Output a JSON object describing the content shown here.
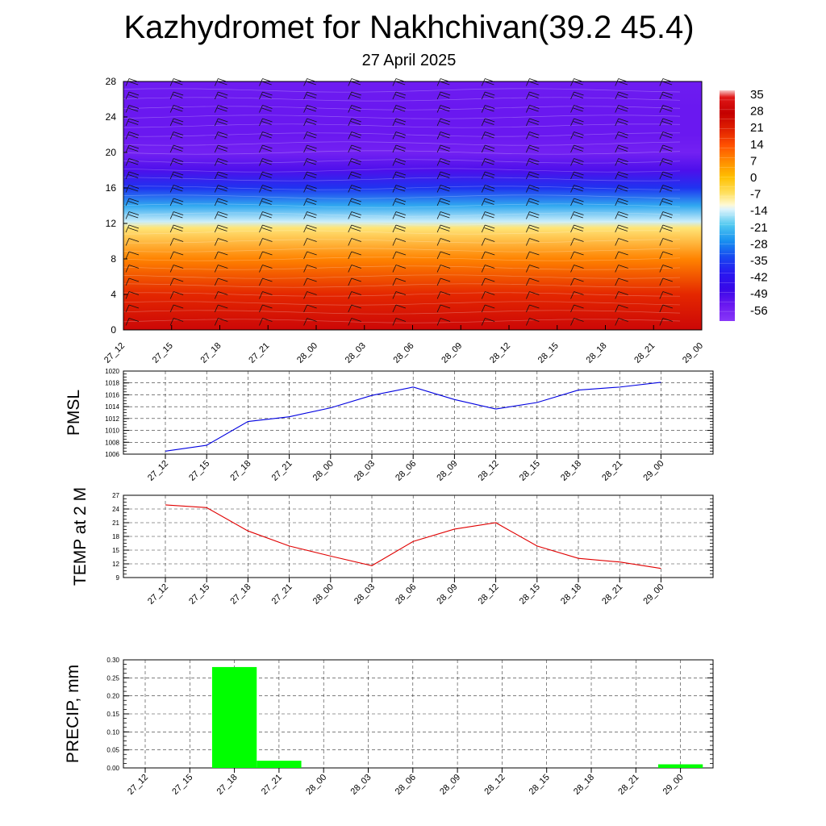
{
  "title": "Kazhydromet for Nakhchivan(39.2 45.4)",
  "subtitle": "27 April 2025",
  "chart_data": [
    {
      "type": "heatmap",
      "ylim": [
        0,
        28
      ],
      "yticks": [
        "0",
        "4",
        "8",
        "12",
        "16",
        "20",
        "24",
        "28"
      ],
      "xticks": [
        "27_12",
        "27_15",
        "27_18",
        "27_21",
        "28_00",
        "28_03",
        "28_06",
        "28_09",
        "28_12",
        "28_15",
        "28_18",
        "28_21",
        "29_00"
      ],
      "colorbar": {
        "labels": [
          "35",
          "28",
          "21",
          "14",
          "7",
          "0",
          "-7",
          "-14",
          "-21",
          "-28",
          "-35",
          "-42",
          "-49",
          "-56"
        ],
        "stops": [
          {
            "value": 38,
            "color": "#f8c8c8"
          },
          {
            "value": 35,
            "color": "#e01818"
          },
          {
            "value": 28,
            "color": "#c40000"
          },
          {
            "value": 21,
            "color": "#e02000"
          },
          {
            "value": 14,
            "color": "#ff5000"
          },
          {
            "value": 7,
            "color": "#ff8c00"
          },
          {
            "value": 0,
            "color": "#ffc000"
          },
          {
            "value": -7,
            "color": "#ffe060"
          },
          {
            "value": -12,
            "color": "#fff8d0"
          },
          {
            "value": -14,
            "color": "#e0f4fc"
          },
          {
            "value": -21,
            "color": "#50c8f0"
          },
          {
            "value": -28,
            "color": "#1890f0"
          },
          {
            "value": -35,
            "color": "#1848f0"
          },
          {
            "value": -42,
            "color": "#2818f0"
          },
          {
            "value": -49,
            "color": "#3808e8"
          },
          {
            "value": -56,
            "color": "#6a18f0"
          },
          {
            "value": -63,
            "color": "#8838f8"
          }
        ]
      },
      "temperature_profile": [
        {
          "level": 0,
          "value": 30
        },
        {
          "level": 4,
          "value": 20
        },
        {
          "level": 8,
          "value": 8
        },
        {
          "level": 11.5,
          "value": -8
        },
        {
          "level": 12.2,
          "value": -15
        },
        {
          "level": 14,
          "value": -25
        },
        {
          "level": 16,
          "value": -38
        },
        {
          "level": 18,
          "value": -52
        },
        {
          "level": 20,
          "value": -58
        },
        {
          "level": 22,
          "value": -56
        },
        {
          "level": 25,
          "value": -56
        },
        {
          "level": 28,
          "value": -57
        }
      ]
    },
    {
      "type": "line",
      "ylabel": "PMSL",
      "categories": [
        "27_12",
        "27_15",
        "27_18",
        "27_21",
        "28_00",
        "28_03",
        "28_06",
        "28_09",
        "28_12",
        "28_15",
        "28_18",
        "28_21",
        "29_00"
      ],
      "ylim": [
        1006,
        1020
      ],
      "yticks": [
        "1006",
        "1008",
        "1010",
        "1012",
        "1014",
        "1016",
        "1018",
        "1020"
      ],
      "color": "#0000e0",
      "values": [
        1006.5,
        1007.5,
        1011.5,
        1012.3,
        1013.8,
        1015.9,
        1017.3,
        1015.2,
        1013.6,
        1014.7,
        1016.8,
        1017.3,
        1018.1
      ]
    },
    {
      "type": "line",
      "ylabel": "TEMP at 2 M",
      "categories": [
        "27_12",
        "27_15",
        "27_18",
        "27_21",
        "28_00",
        "28_03",
        "28_06",
        "28_09",
        "28_12",
        "28_15",
        "28_18",
        "28_21",
        "29_00"
      ],
      "ylim": [
        9,
        27
      ],
      "yticks": [
        "9",
        "12",
        "15",
        "18",
        "21",
        "24",
        "27"
      ],
      "color": "#e00000",
      "values": [
        24.9,
        24.3,
        19.2,
        15.9,
        13.7,
        11.6,
        16.9,
        19.6,
        21.0,
        15.9,
        13.2,
        12.4,
        11.0
      ]
    },
    {
      "type": "bar",
      "ylabel": "PRECIP, mm",
      "categories": [
        "27_12",
        "27_15",
        "27_18",
        "27_21",
        "28_00",
        "28_03",
        "28_06",
        "28_09",
        "28_12",
        "28_15",
        "28_18",
        "28_21",
        "29_00"
      ],
      "ylim": [
        0,
        0.3
      ],
      "yticks": [
        "0.00",
        "0.05",
        "0.10",
        "0.15",
        "0.20",
        "0.25",
        "0.30"
      ],
      "color": "#00ff00",
      "values": [
        0,
        0,
        0.28,
        0.02,
        0,
        0,
        0,
        0,
        0,
        0,
        0,
        0,
        0.01
      ]
    }
  ]
}
